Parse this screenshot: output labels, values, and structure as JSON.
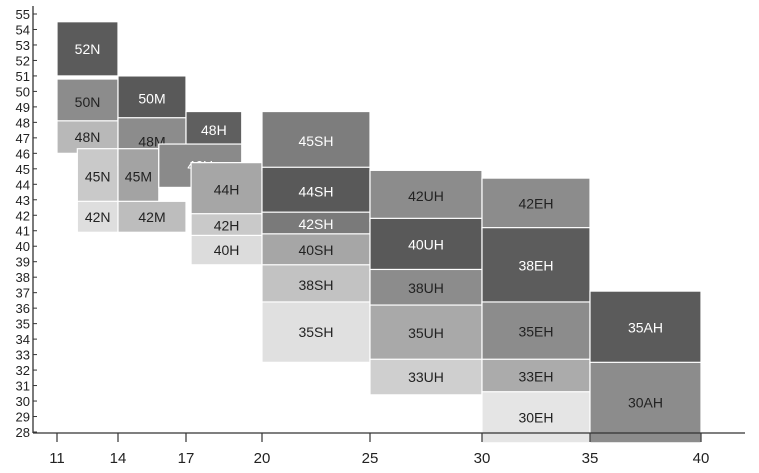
{
  "chart_data": {
    "type": "heatmap",
    "title": "",
    "xlabel": "",
    "ylabel": "",
    "xlim": [
      11,
      40
    ],
    "ylim": [
      28,
      55
    ],
    "x_ticks": [
      "11",
      "14",
      "17",
      "20",
      "25",
      "30",
      "35",
      "40"
    ],
    "y_ticks": [
      "28",
      "29",
      "30",
      "31",
      "32",
      "33",
      "34",
      "35",
      "36",
      "37",
      "38",
      "39",
      "40",
      "41",
      "42",
      "43",
      "44",
      "45",
      "46",
      "47",
      "48",
      "49",
      "50",
      "51",
      "52",
      "53",
      "54",
      "55"
    ],
    "grid": false,
    "cells": [
      {
        "label": "52N",
        "x0": 11,
        "x1": 14,
        "y0": 51,
        "y1": 54.5,
        "color": "#5b5b5b"
      },
      {
        "label": "50N",
        "x0": 11,
        "x1": 14,
        "y0": 47.8,
        "y1": 50.8,
        "color": "#8c8c8c"
      },
      {
        "label": "48N",
        "x0": 11,
        "x1": 14,
        "y0": 46,
        "y1": 48.1,
        "color": "#b8b8b8"
      },
      {
        "label": "45N",
        "x0": 12,
        "x1": 14,
        "y0": 42.7,
        "y1": 46.3,
        "color": "#c9c9c9"
      },
      {
        "label": "42N",
        "x0": 12,
        "x1": 14,
        "y0": 40.9,
        "y1": 42.9,
        "color": "#dedede"
      },
      {
        "label": "50M",
        "x0": 14,
        "x1": 17,
        "y0": 48.1,
        "y1": 51,
        "color": "#595959"
      },
      {
        "label": "48M",
        "x0": 14,
        "x1": 17,
        "y0": 45.2,
        "y1": 48.3,
        "color": "#8c8c8c"
      },
      {
        "label": "45M",
        "x0": 14,
        "x1": 15.8,
        "y0": 42.7,
        "y1": 46.3,
        "color": "#a3a3a3"
      },
      {
        "label": "42M",
        "x0": 14,
        "x1": 17,
        "y0": 40.9,
        "y1": 42.9,
        "color": "#bdbdbd"
      },
      {
        "label": "48H",
        "x0": 17,
        "x1": 19.2,
        "y0": 46.3,
        "y1": 48.7,
        "color": "#5f5f5f"
      },
      {
        "label": "46H",
        "x0": 15.8,
        "x1": 19.2,
        "y0": 43.8,
        "y1": 46.6,
        "color": "#8a8a8a"
      },
      {
        "label": "44H",
        "x0": 17.2,
        "x1": 20,
        "y0": 41.9,
        "y1": 45.4,
        "color": "#a6a6a6"
      },
      {
        "label": "42H",
        "x0": 17.2,
        "x1": 20,
        "y0": 40.6,
        "y1": 42.1,
        "color": "#c9c9c9"
      },
      {
        "label": "40H",
        "x0": 17.2,
        "x1": 20,
        "y0": 38.8,
        "y1": 40.7,
        "color": "#dcdcdc"
      },
      {
        "label": "45SH",
        "x0": 20,
        "x1": 25,
        "y0": 44.9,
        "y1": 48.7,
        "color": "#7d7d7d"
      },
      {
        "label": "44SH",
        "x0": 20,
        "x1": 25,
        "y0": 42,
        "y1": 45.1,
        "color": "#595959"
      },
      {
        "label": "42SH",
        "x0": 20,
        "x1": 25,
        "y0": 40.7,
        "y1": 42.2,
        "color": "#7a7a7a"
      },
      {
        "label": "40SH",
        "x0": 20,
        "x1": 25,
        "y0": 38.7,
        "y1": 40.8,
        "color": "#a6a6a6"
      },
      {
        "label": "38SH",
        "x0": 20,
        "x1": 25,
        "y0": 36.2,
        "y1": 38.8,
        "color": "#c2c2c2"
      },
      {
        "label": "35SH",
        "x0": 20,
        "x1": 25,
        "y0": 32.5,
        "y1": 36.4,
        "color": "#e0e0e0"
      },
      {
        "label": "42UH",
        "x0": 25,
        "x1": 30,
        "y0": 41.6,
        "y1": 44.9,
        "color": "#8c8c8c"
      },
      {
        "label": "40UH",
        "x0": 25,
        "x1": 30,
        "y0": 38.4,
        "y1": 41.8,
        "color": "#595959"
      },
      {
        "label": "38UH",
        "x0": 25,
        "x1": 30,
        "y0": 36.1,
        "y1": 38.5,
        "color": "#8c8c8c"
      },
      {
        "label": "35UH",
        "x0": 25,
        "x1": 30,
        "y0": 32.6,
        "y1": 36.2,
        "color": "#a9a9a9"
      },
      {
        "label": "33UH",
        "x0": 25,
        "x1": 30,
        "y0": 30.4,
        "y1": 32.7,
        "color": "#cfcfcf"
      },
      {
        "label": "42EH",
        "x0": 30,
        "x1": 35,
        "y0": 41.1,
        "y1": 44.4,
        "color": "#8c8c8c"
      },
      {
        "label": "38EH",
        "x0": 30,
        "x1": 35,
        "y0": 36.3,
        "y1": 41.2,
        "color": "#5c5c5c"
      },
      {
        "label": "35EH",
        "x0": 30,
        "x1": 35,
        "y0": 32.6,
        "y1": 36.4,
        "color": "#8c8c8c"
      },
      {
        "label": "33EH",
        "x0": 30,
        "x1": 35,
        "y0": 30.5,
        "y1": 32.7,
        "color": "#ababab"
      },
      {
        "label": "30EH",
        "x0": 30,
        "x1": 35,
        "y0": 27.3,
        "y1": 30.6,
        "color": "#e5e5e5"
      },
      {
        "label": "35AH",
        "x0": 35,
        "x1": 40,
        "y0": 32.4,
        "y1": 37.1,
        "color": "#5b5b5b"
      },
      {
        "label": "30AH",
        "x0": 35,
        "x1": 40,
        "y0": 27.3,
        "y1": 32.5,
        "color": "#8c8c8c"
      }
    ],
    "colors": {
      "axis": "#333333",
      "cell_border": "#ffffff",
      "label_on_dark": "#ffffff",
      "label_on_light": "#222222"
    }
  }
}
